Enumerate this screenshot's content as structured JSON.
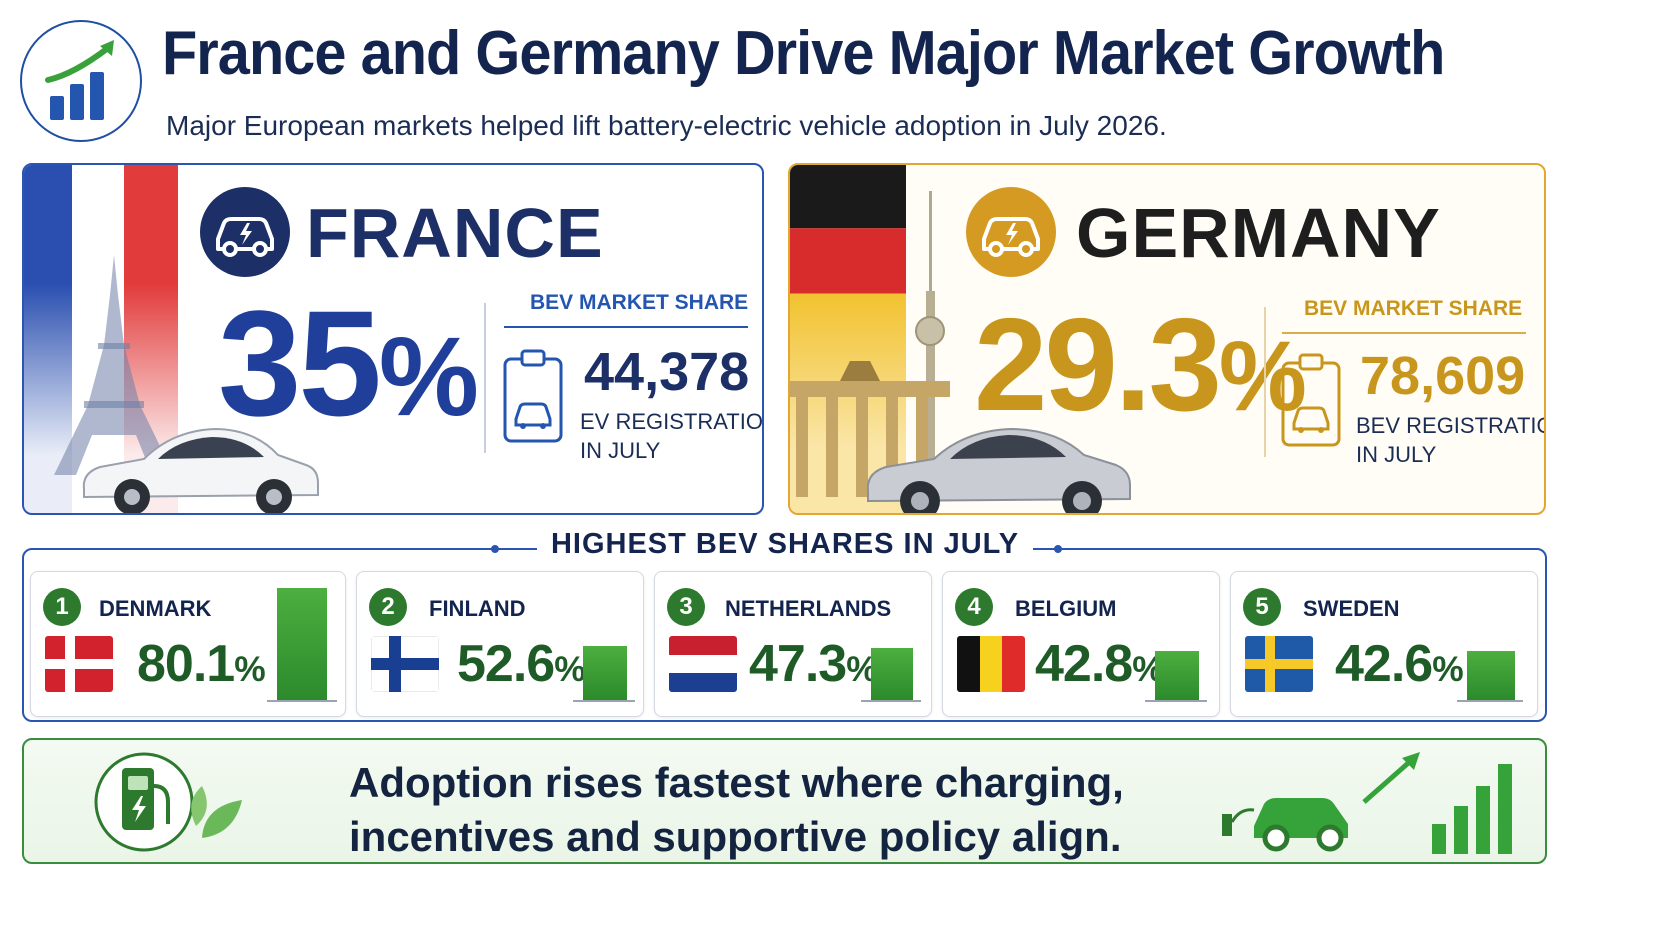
{
  "header": {
    "title": "France and Germany Drive Major Market Growth",
    "subtitle": "Major European markets helped lift battery-electric vehicle adoption in July 2026."
  },
  "countries": [
    {
      "name": "FRANCE",
      "share": "35",
      "share_unit": "%",
      "share_label": "BEV MARKET SHARE",
      "registrations": "44,378",
      "registrations_label_1": "EV REGISTRATIONS",
      "registrations_label_2": "IN JULY",
      "accent": "#1f3f9a"
    },
    {
      "name": "GERMANY",
      "share": "29.3",
      "share_unit": "%",
      "share_label": "BEV MARKET SHARE",
      "registrations": "78,609",
      "registrations_label_1": "BEV REGISTRATIONS",
      "registrations_label_2": "IN JULY",
      "accent": "#c8961c"
    }
  ],
  "ranking": {
    "heading": "HIGHEST BEV SHARES IN JULY",
    "items": [
      {
        "rank": "1",
        "name": "DENMARK",
        "value": "80.1",
        "unit": "%",
        "share": 80.1
      },
      {
        "rank": "2",
        "name": "FINLAND",
        "value": "52.6",
        "unit": "%",
        "share": 52.6
      },
      {
        "rank": "3",
        "name": "NETHERLANDS",
        "value": "47.3",
        "unit": "%",
        "share": 47.3
      },
      {
        "rank": "4",
        "name": "BELGIUM",
        "value": "42.8",
        "unit": "%",
        "share": 42.8
      },
      {
        "rank": "5",
        "name": "SWEDEN",
        "value": "42.6",
        "unit": "%",
        "share": 42.6
      }
    ]
  },
  "banner": {
    "line1": "Adoption rises fastest where charging,",
    "line2": "incentives and supportive policy align."
  },
  "icons": [
    "growth-chart-icon",
    "electric-car-icon",
    "clipboard-car-icon",
    "eiffel-tower-icon",
    "tv-tower-icon",
    "brandenburg-gate-icon",
    "charging-station-icon",
    "leaf-icon",
    "car-growth-icon"
  ],
  "colors": {
    "navy": "#13254f",
    "france_blue": "#1f3f9a",
    "germany_gold": "#c8961c",
    "green": "#2d7a2f"
  }
}
